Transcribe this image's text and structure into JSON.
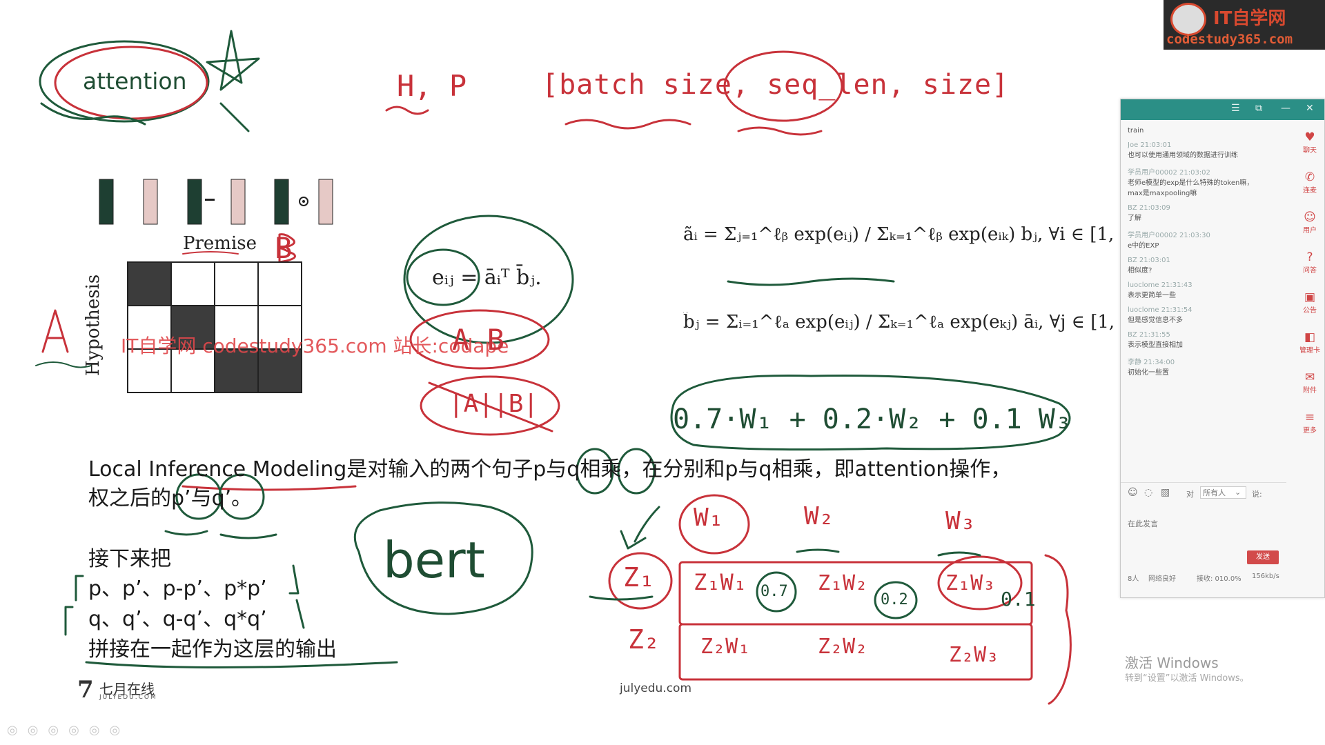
{
  "slide": {
    "handwriting": {
      "attention": "attention",
      "h_p": "H, P",
      "shape": "[batch size, seq_len, size]",
      "premise_label": "Premise",
      "hypothesis_label": "Hypothesis",
      "b_mark": "B",
      "a_mark": "A",
      "a_b": "A  B",
      "abs_ab": "|A||B|",
      "weighted": "0.7·W₁ + 0.2·W₂ + 0.1 W₃",
      "w1": "W₁",
      "w2": "W₂",
      "w3": "W₃",
      "z1": "Z₁",
      "z2": "Z₂",
      "z1w1": "Z₁W₁",
      "z1w2": "Z₁W₂",
      "z1w3": "Z₁W₃",
      "z2w1": "Z₂W₁",
      "z2w2": "Z₂W₂",
      "z2w3": "Z₂W₃",
      "v07": "0.7",
      "v02": "0.2",
      "v01": "0.1",
      "bert": "bert"
    },
    "formulas": {
      "eij": "eᵢⱼ = āᵢᵀ b̄ⱼ.",
      "a_tilde": "ãᵢ = Σⱼ₌₁^ℓᵦ  exp(eᵢⱼ) / Σₖ₌₁^ℓᵦ exp(eᵢₖ)  b̄ⱼ, ∀i ∈ [1, . . . , ℓₐ],",
      "b_tilde": "b̃ⱼ = Σᵢ₌₁^ℓₐ  exp(eᵢⱼ) / Σₖ₌₁^ℓₐ exp(eₖⱼ)  āᵢ, ∀j ∈ [1, . . . , ℓᵦ],"
    },
    "text": {
      "line1": "Local Inference Modeling是对输入的两个句子p与q相乘，在分别和p与q相乘，即attention操作，",
      "line2": "权之后的p’与q’。",
      "line3": "接下来把",
      "line4": "p、p’、p-p’、p*p’",
      "line5": "q、q’、q-q’、q*q’",
      "line6": "拼接在一起作为这层的输出"
    },
    "watermark": "IT自学网 codestudy365.com 站长:codape",
    "footer_logo": "七月在线",
    "footer_logo_sub": "JULYEDU.COM",
    "footer_url": "julyedu.com",
    "windows_activate": "激活 Windows",
    "windows_activate_sub": "转到“设置”以激活 Windows。"
  },
  "logo": {
    "title": "IT自学网",
    "url": "codestudy365.com"
  },
  "chat": {
    "titlebar_icons": [
      "☰",
      "⧉",
      "—",
      "✕"
    ],
    "messages": [
      {
        "who": "",
        "text": "train"
      },
      {
        "who": "Joe 21:03:01",
        "text": "也可以使用通用领域的数据进行训练"
      },
      {
        "who": "学员用户00002 21:03:02",
        "text": "老师e模型的exp是什么特殊的token嘛，"
      },
      {
        "who": "",
        "text": "max是maxpooling嘛"
      },
      {
        "who": "BZ 21:03:09",
        "text": "了解"
      },
      {
        "who": "学员用户00002 21:03:30",
        "text": "e中的EXP"
      },
      {
        "who": "BZ 21:03:01",
        "text": "相似度?"
      },
      {
        "who": "luoclome 21:31:43",
        "text": "表示更简单一些"
      },
      {
        "who": "luoclome 21:31:54",
        "text": "但是感觉信息不多"
      },
      {
        "who": "BZ 21:31:55",
        "text": "表示模型直接相加"
      },
      {
        "who": "李静 21:34:00",
        "text": "初始化一些置"
      }
    ],
    "side_items": [
      {
        "icon": "heart-icon",
        "glyph": "♥",
        "label": "聊天"
      },
      {
        "icon": "phone-icon",
        "glyph": "✆",
        "label": "连麦"
      },
      {
        "icon": "user-icon",
        "glyph": "☺",
        "label": "用户"
      },
      {
        "icon": "question-icon",
        "glyph": "?",
        "label": "问答"
      },
      {
        "icon": "announce-icon",
        "glyph": "▣",
        "label": "公告"
      },
      {
        "icon": "manage-icon",
        "glyph": "◧",
        "label": "管理卡"
      },
      {
        "icon": "attach-icon",
        "glyph": "✉",
        "label": "附件"
      },
      {
        "icon": "more-icon",
        "glyph": "≡",
        "label": "更多"
      }
    ],
    "to_label": "对",
    "target": "所有人",
    "say_label": "说:",
    "input_placeholder": "在此发言",
    "send_label": "发送",
    "status": {
      "users": "8人",
      "network": "网络良好",
      "recv": "接收: 010.0%",
      "speed": "156kb/s"
    }
  }
}
